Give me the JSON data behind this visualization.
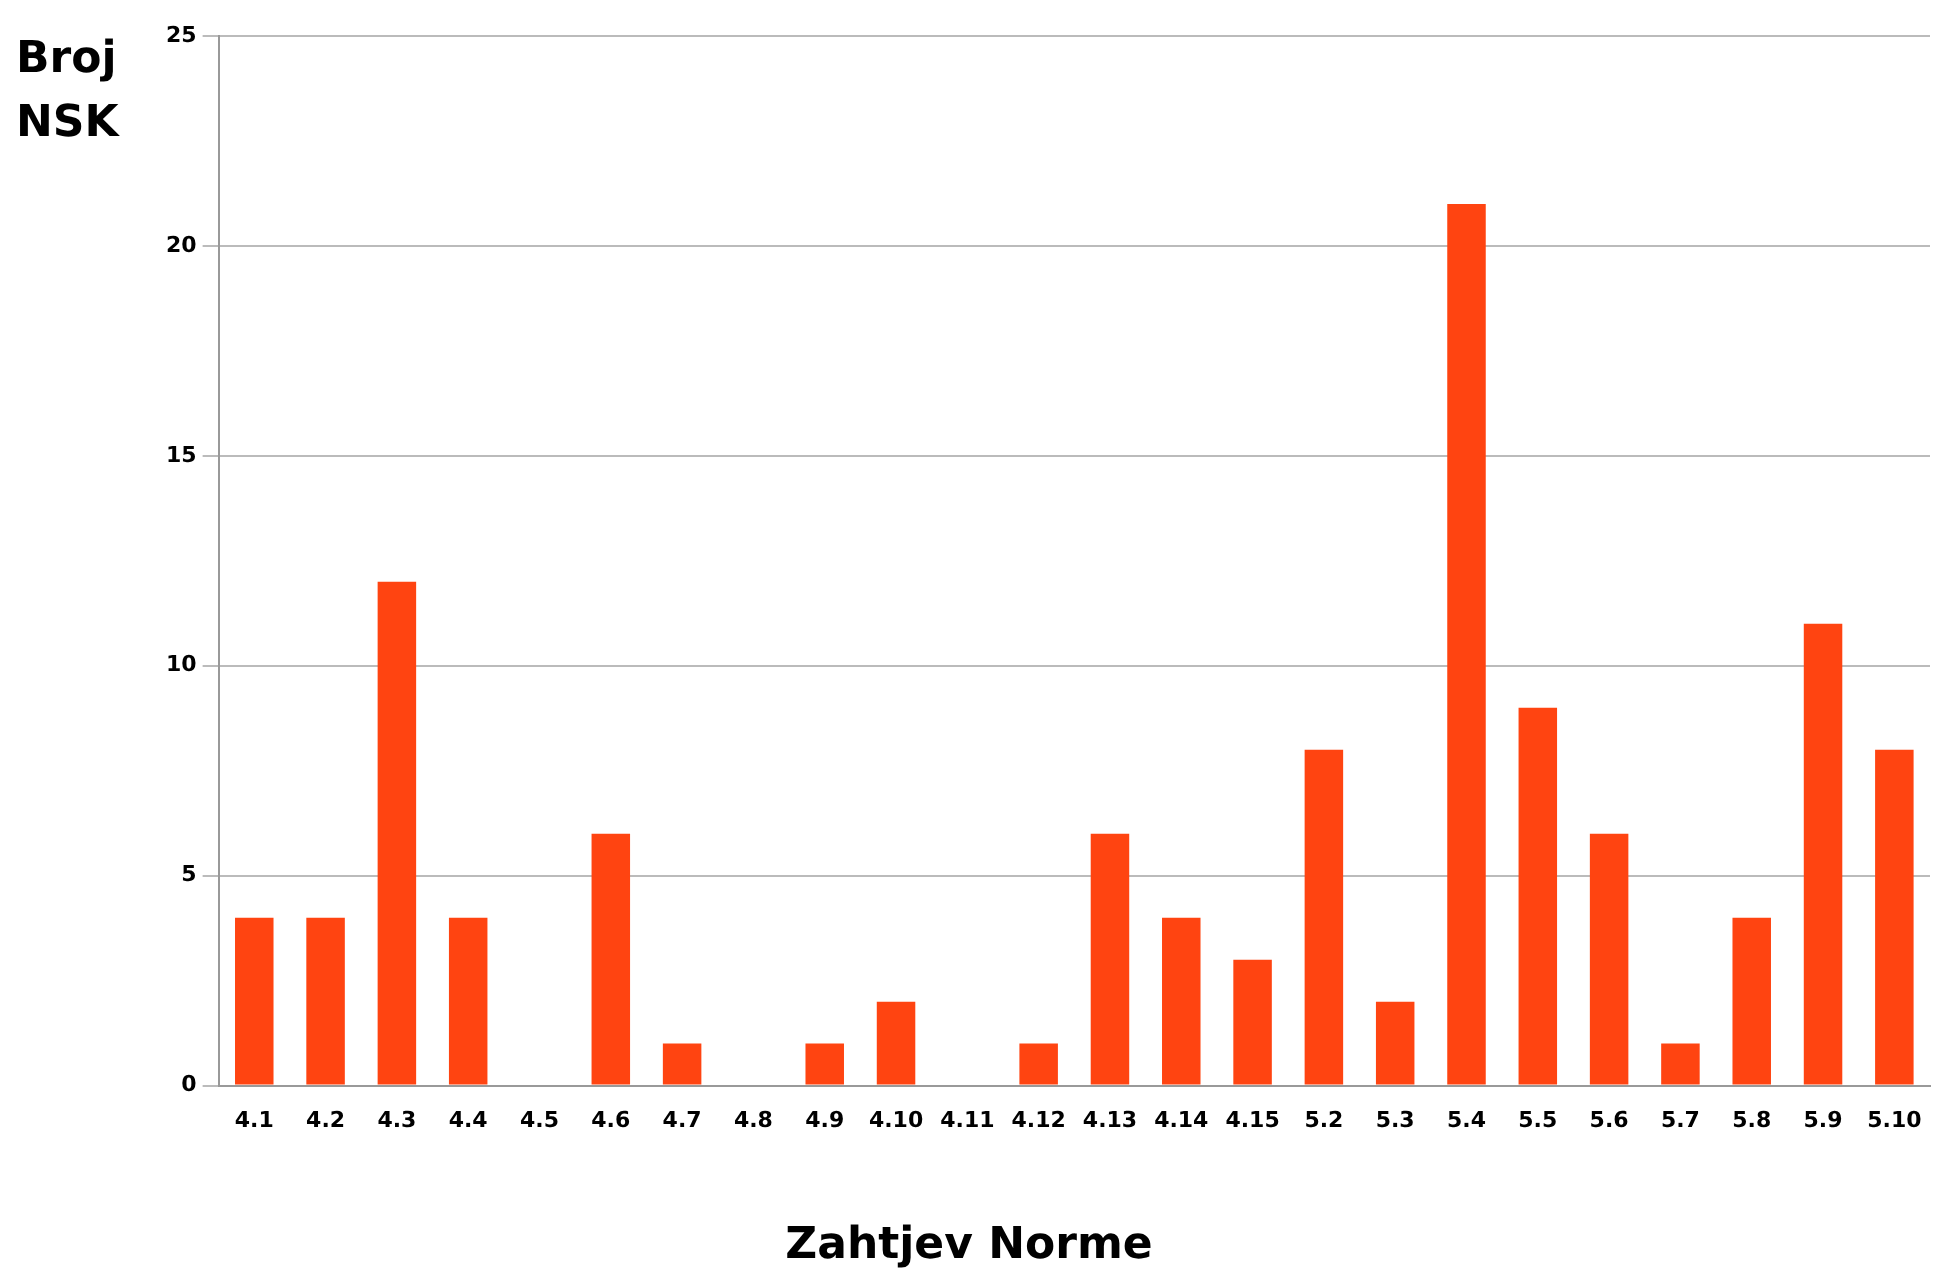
{
  "chart_data": {
    "type": "bar",
    "xlabel": "Zahtjev Norme",
    "ylabel": "Broj NSK",
    "categories": [
      "4.1",
      "4.2",
      "4.3",
      "4.4",
      "4.5",
      "4.6",
      "4.7",
      "4.8",
      "4.9",
      "4.10",
      "4.11",
      "4.12",
      "4.13",
      "4.14",
      "4.15",
      "5.2",
      "5.3",
      "5.4",
      "5.5",
      "5.6",
      "5.7",
      "5.8",
      "5.9",
      "5.10"
    ],
    "values": [
      4,
      4,
      12,
      4,
      0,
      6,
      1,
      0,
      1,
      2,
      0,
      1,
      6,
      4,
      3,
      8,
      2,
      21,
      9,
      6,
      1,
      4,
      11,
      8
    ],
    "color": "#ff4411",
    "ylim": [
      0,
      25
    ],
    "yticks": [
      0,
      5,
      10,
      15,
      20,
      25
    ],
    "grid": "y",
    "legend": false
  }
}
